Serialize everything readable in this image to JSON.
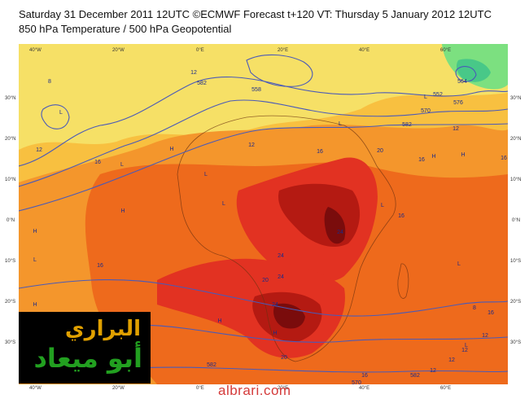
{
  "header": {
    "line1": "Saturday 31 December 2011 12UTC ©ECMWF Forecast t+120 VT: Thursday 5 January 2012 12UTC",
    "line2": "850 hPa Temperature / 500 hPa Geopotential"
  },
  "axes": {
    "longitude_labels": [
      "40°W",
      "20°W",
      "0°E",
      "20°E",
      "40°E",
      "60°E"
    ],
    "latitude_labels": [
      "30°N",
      "20°N",
      "10°N",
      "0°N",
      "10°S",
      "20°S",
      "30°S"
    ]
  },
  "geopotential_labels": [
    "582",
    "558",
    "570",
    "576",
    "552",
    "582",
    "564",
    "570",
    "582",
    "582"
  ],
  "temperature_labels": [
    "8",
    "12",
    "16",
    "16",
    "12",
    "20",
    "16",
    "16",
    "12",
    "16",
    "24",
    "24",
    "20",
    "24",
    "24",
    "20",
    "16",
    "12",
    "16",
    "12",
    "12",
    "8",
    "16",
    "12",
    "12"
  ],
  "pressure_centers": [
    "H",
    "H",
    "H",
    "L",
    "L",
    "L",
    "L",
    "H",
    "H",
    "L",
    "L",
    "H",
    "L",
    "L",
    "H",
    "L",
    "H",
    "L"
  ],
  "colors": {
    "cool_green": "#7ce080",
    "yellow": "#f6e066",
    "light_orange": "#f8c040",
    "orange": "#f4962c",
    "dark_orange": "#ee6a1c",
    "red": "#e23222",
    "dark_red": "#b41a12",
    "darkest_red": "#7a0c0c",
    "contour": "#4a5ab8"
  },
  "logo": {
    "line1": "البراري",
    "line2": "أبو ميعاد"
  },
  "watermark": "albrari.com"
}
